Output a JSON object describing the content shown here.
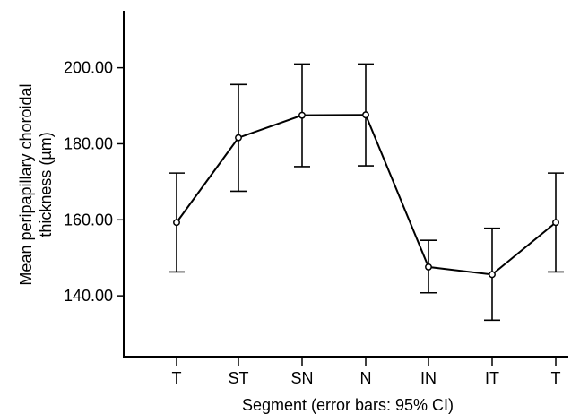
{
  "chart_data": {
    "type": "line",
    "title": "",
    "xlabel": "Segment (error bars: 95% CI)",
    "ylabel_lines": [
      "Mean peripapillary choroidal",
      "thickness (µm)"
    ],
    "categories": [
      "T",
      "ST",
      "SN",
      "N",
      "IN",
      "IT",
      "T"
    ],
    "series": [
      {
        "values": [
          159.3,
          181.6,
          187.5,
          187.6,
          147.6,
          145.6,
          159.3
        ],
        "ci_low": [
          146.3,
          167.5,
          174.0,
          174.2,
          140.8,
          133.6,
          146.3
        ],
        "ci_high": [
          172.3,
          195.6,
          201.0,
          201.0,
          154.6,
          157.8,
          172.3
        ]
      }
    ],
    "ylim": [
      124.0,
      215.0
    ],
    "yticks": [
      {
        "value": 140,
        "label": "140.00"
      },
      {
        "value": 160,
        "label": "160.00"
      },
      {
        "value": 180,
        "label": "180.00"
      },
      {
        "value": 200,
        "label": "200.00"
      }
    ],
    "grid": false,
    "legend": "none",
    "colors": {
      "line": "#000000",
      "marker_fill": "#ffffff",
      "background": "#ffffff"
    }
  }
}
